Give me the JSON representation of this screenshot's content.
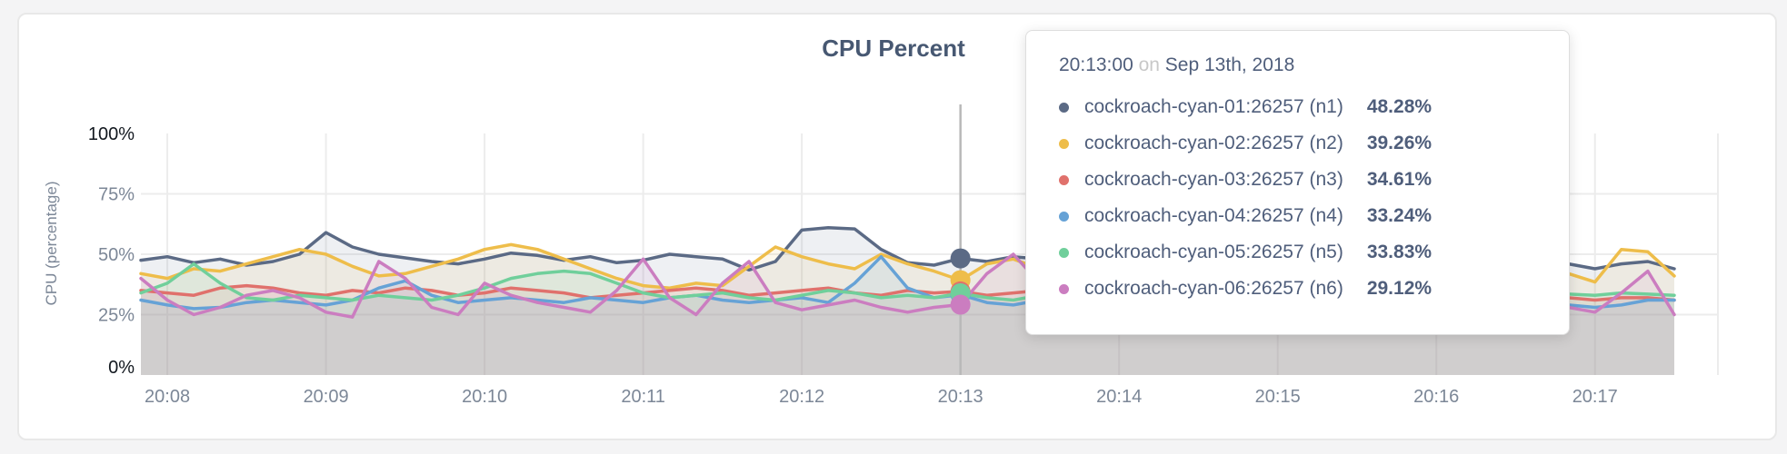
{
  "page": {
    "background": "#f4f4f5"
  },
  "card": {
    "background": "#ffffff",
    "border_color": "#e8e8e8"
  },
  "tooltip": {
    "time": "20:13:00",
    "conjunction": "on",
    "date": "Sep 13th, 2018"
  },
  "chart_data": {
    "type": "area",
    "title": "CPU Percent",
    "ylabel": "CPU (percentage)",
    "ylim": [
      0,
      100
    ],
    "grid": true,
    "legend_position": "tooltip",
    "y_ticks": [
      {
        "label": "100%",
        "value": 100,
        "emphasis": true
      },
      {
        "label": "75%",
        "value": 75,
        "emphasis": false
      },
      {
        "label": "50%",
        "value": 50,
        "emphasis": false
      },
      {
        "label": "25%",
        "value": 25,
        "emphasis": false
      },
      {
        "label": "0%",
        "value": 0,
        "emphasis": true
      }
    ],
    "x_ticks": [
      "20:08",
      "20:09",
      "20:10",
      "20:11",
      "20:12",
      "20:13",
      "20:14",
      "20:15",
      "20:16",
      "20:17"
    ],
    "x_start_time": "20:07:50",
    "sample_interval_seconds": 10,
    "axis_color": "#7c8797",
    "axis_emphasis_color": "#12181f",
    "grid_color": "#ececec",
    "hover": {
      "index": 31,
      "time": "20:13:00",
      "line_color": "#b9b9b9"
    },
    "series": [
      {
        "name": "cockroach-cyan-01:26257 (n1)",
        "color": "#5b6a85",
        "hover_label": "48.28%",
        "values": [
          47.5,
          49,
          46.5,
          48,
          45.5,
          47,
          50,
          59,
          53,
          50,
          48.5,
          47,
          46,
          48,
          50.5,
          49.5,
          47.5,
          49,
          46.5,
          47.5,
          50,
          49,
          48,
          43.5,
          47,
          60,
          61,
          60.5,
          52,
          46.5,
          45.5,
          48.28,
          47,
          49,
          48,
          46.5,
          48.5,
          47,
          49.5,
          48,
          46,
          47.5,
          49,
          47,
          48.5,
          46.5,
          48,
          49.5,
          47,
          46,
          48,
          47.5,
          49,
          46,
          46,
          44,
          46,
          47,
          44
        ]
      },
      {
        "name": "cockroach-cyan-02:26257 (n2)",
        "color": "#eebd4a",
        "hover_label": "39.26%",
        "values": [
          42,
          40,
          44,
          43,
          46,
          49,
          52,
          50,
          45,
          41,
          42,
          45,
          48,
          52,
          54,
          52,
          48,
          44,
          40,
          37,
          36,
          38,
          37,
          45,
          53,
          49,
          46,
          44,
          50,
          46,
          43,
          39.26,
          46,
          48,
          44,
          41,
          43,
          46,
          40,
          42,
          45,
          43,
          40,
          44,
          47,
          42,
          39,
          43,
          46,
          41,
          44,
          42,
          45,
          43,
          42,
          38.5,
          52,
          51,
          41
        ]
      },
      {
        "name": "cockroach-cyan-03:26257 (n3)",
        "color": "#e0716c",
        "hover_label": "34.61%",
        "values": [
          35,
          34,
          33,
          36,
          37,
          36,
          34,
          33,
          35,
          34,
          36,
          35,
          33,
          34,
          36,
          35,
          34,
          32,
          33,
          34,
          35,
          36,
          35,
          33,
          34,
          35,
          36,
          34,
          33,
          35,
          34,
          34.61,
          33,
          34,
          35,
          33,
          34,
          36,
          34,
          33,
          35,
          34,
          33,
          35,
          34,
          36,
          34,
          33,
          35,
          34,
          33,
          34,
          35,
          33,
          32,
          31,
          32,
          32,
          31
        ]
      },
      {
        "name": "cockroach-cyan-04:26257 (n4)",
        "color": "#66a2d6",
        "hover_label": "33.24%",
        "values": [
          31,
          29,
          27.5,
          28,
          30,
          31,
          30,
          29,
          31,
          36,
          39,
          33,
          30,
          31,
          32,
          31,
          30,
          32,
          31,
          30,
          32,
          33,
          31,
          30,
          31,
          32,
          30,
          38,
          49,
          36,
          32,
          33.24,
          30,
          29,
          31,
          30,
          32,
          31,
          29,
          30,
          32,
          31,
          30,
          31,
          32,
          30,
          29,
          31,
          30,
          32,
          31,
          29,
          28,
          30,
          29,
          28,
          29,
          31,
          31
        ]
      },
      {
        "name": "cockroach-cyan-05:26257 (n5)",
        "color": "#70cf9b",
        "hover_label": "33.83%",
        "values": [
          34,
          38,
          46,
          38,
          32,
          31,
          33,
          32,
          31,
          33,
          32,
          31,
          33,
          36,
          40,
          42,
          43,
          42,
          38,
          34,
          32,
          33,
          34,
          32,
          31,
          33,
          35,
          34,
          32,
          33,
          32,
          33.83,
          32,
          31,
          33,
          34,
          32,
          33,
          35,
          33,
          32,
          34,
          33,
          32,
          34,
          33,
          31,
          33,
          34,
          32,
          33,
          34,
          33,
          34,
          33.5,
          33,
          34,
          33.5,
          33
        ]
      },
      {
        "name": "cockroach-cyan-06:26257 (n6)",
        "color": "#cb7dc0",
        "hover_label": "29.12%",
        "values": [
          40,
          31,
          25,
          28,
          33,
          35,
          32,
          26,
          24,
          47,
          40,
          28,
          25,
          38,
          33,
          30,
          28,
          26,
          35,
          48,
          32,
          25,
          38,
          47,
          30,
          27,
          29,
          31,
          28,
          26,
          28,
          29.12,
          42,
          50,
          38,
          28,
          26,
          30,
          34,
          28,
          25,
          29,
          33,
          27,
          26,
          31,
          28,
          26,
          30,
          28,
          26,
          29,
          27,
          26,
          28,
          26,
          34,
          43,
          25
        ]
      }
    ]
  }
}
